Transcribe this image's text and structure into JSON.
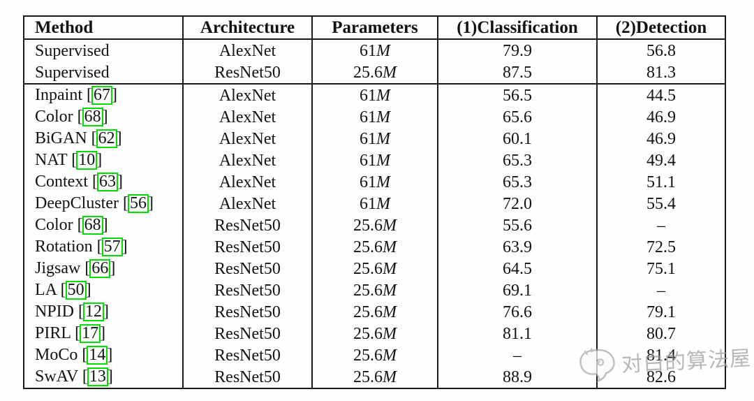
{
  "watermark": {
    "text": "对白的算法屋",
    "logo_icon": "speech-bubble-doodle-icon",
    "color": "#9c9c9c"
  },
  "table": {
    "link_box_color": "#00dd00",
    "columns": [
      {
        "key": "method",
        "label": "Method"
      },
      {
        "key": "architecture",
        "label": "Architecture"
      },
      {
        "key": "parameters",
        "label": "Parameters"
      },
      {
        "key": "classification",
        "label": "(1)Classification"
      },
      {
        "key": "detection",
        "label": "(2)Detection"
      }
    ],
    "rows": [
      {
        "section": "supervised",
        "method": "Supervised",
        "ref": null,
        "architecture": "AlexNet",
        "parameters": "61M",
        "classification": "79.9",
        "detection": "56.8"
      },
      {
        "section": "supervised",
        "method": "Supervised",
        "ref": null,
        "architecture": "ResNet50",
        "parameters": "25.6M",
        "classification": "87.5",
        "detection": "81.3"
      },
      {
        "section": "self-supervised",
        "method": "Inpaint",
        "ref": "67",
        "architecture": "AlexNet",
        "parameters": "61M",
        "classification": "56.5",
        "detection": "44.5"
      },
      {
        "section": "self-supervised",
        "method": "Color",
        "ref": "68",
        "architecture": "AlexNet",
        "parameters": "61M",
        "classification": "65.6",
        "detection": "46.9"
      },
      {
        "section": "self-supervised",
        "method": "BiGAN",
        "ref": "62",
        "architecture": "AlexNet",
        "parameters": "61M",
        "classification": "60.1",
        "detection": "46.9"
      },
      {
        "section": "self-supervised",
        "method": "NAT",
        "ref": "10",
        "architecture": "AlexNet",
        "parameters": "61M",
        "classification": "65.3",
        "detection": "49.4"
      },
      {
        "section": "self-supervised",
        "method": "Context",
        "ref": "63",
        "architecture": "AlexNet",
        "parameters": "61M",
        "classification": "65.3",
        "detection": "51.1"
      },
      {
        "section": "self-supervised",
        "method": "DeepCluster",
        "ref": "56",
        "architecture": "AlexNet",
        "parameters": "61M",
        "classification": "72.0",
        "detection": "55.4"
      },
      {
        "section": "self-supervised",
        "method": "Color",
        "ref": "68",
        "architecture": "ResNet50",
        "parameters": "25.6M",
        "classification": "55.6",
        "detection": "–"
      },
      {
        "section": "self-supervised",
        "method": "Rotation",
        "ref": "57",
        "architecture": "ResNet50",
        "parameters": "25.6M",
        "classification": "63.9",
        "detection": "72.5"
      },
      {
        "section": "self-supervised",
        "method": "Jigsaw",
        "ref": "66",
        "architecture": "ResNet50",
        "parameters": "25.6M",
        "classification": "64.5",
        "detection": "75.1"
      },
      {
        "section": "self-supervised",
        "method": "LA",
        "ref": "50",
        "architecture": "ResNet50",
        "parameters": "25.6M",
        "classification": "69.1",
        "detection": "–"
      },
      {
        "section": "self-supervised",
        "method": "NPID",
        "ref": "12",
        "architecture": "ResNet50",
        "parameters": "25.6M",
        "classification": "76.6",
        "detection": "79.1"
      },
      {
        "section": "self-supervised",
        "method": "PIRL",
        "ref": "17",
        "architecture": "ResNet50",
        "parameters": "25.6M",
        "classification": "81.1",
        "detection": "80.7"
      },
      {
        "section": "self-supervised",
        "method": "MoCo",
        "ref": "14",
        "architecture": "ResNet50",
        "parameters": "25.6M",
        "classification": "–",
        "detection": "81.4"
      },
      {
        "section": "self-supervised",
        "method": "SwAV",
        "ref": "13",
        "architecture": "ResNet50",
        "parameters": "25.6M",
        "classification": "88.9",
        "detection": "82.6"
      }
    ]
  }
}
